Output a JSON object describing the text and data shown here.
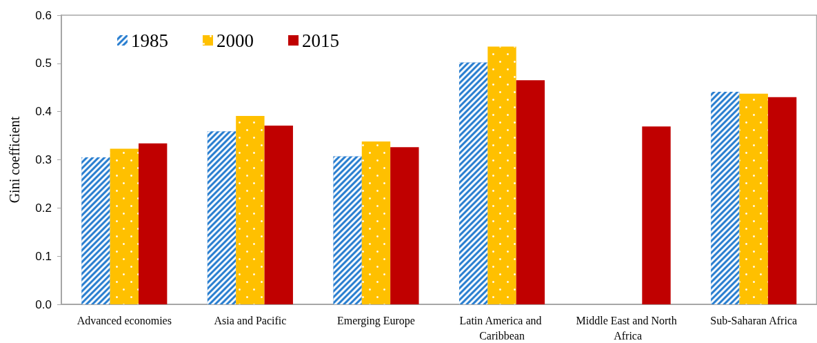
{
  "chart_data": {
    "type": "bar",
    "ylabel": "Gini coefficient",
    "categories": [
      "Advanced economies",
      "Asia and Pacific",
      "Emerging Europe",
      "Latin America and Caribbean",
      "Middle East and North Africa",
      "Sub-Saharan Africa"
    ],
    "series": [
      {
        "name": "1985",
        "color": "#2a7fd0",
        "values": [
          0.305,
          0.359,
          0.307,
          0.502,
          null,
          0.441
        ]
      },
      {
        "name": "2000",
        "color": "#ffc000",
        "values": [
          0.323,
          0.391,
          0.338,
          0.535,
          null,
          0.437
        ]
      },
      {
        "name": "2015",
        "color": "#c00000",
        "values": [
          0.334,
          0.371,
          0.326,
          0.465,
          0.369,
          0.43
        ]
      }
    ],
    "ylim": [
      0,
      0.6
    ],
    "yticks": [
      {
        "value": 0,
        "label": "0.0"
      },
      0.1,
      0.2,
      0.3,
      0.4,
      0.5,
      0.6
    ],
    "grid": false,
    "legend": "top left"
  }
}
